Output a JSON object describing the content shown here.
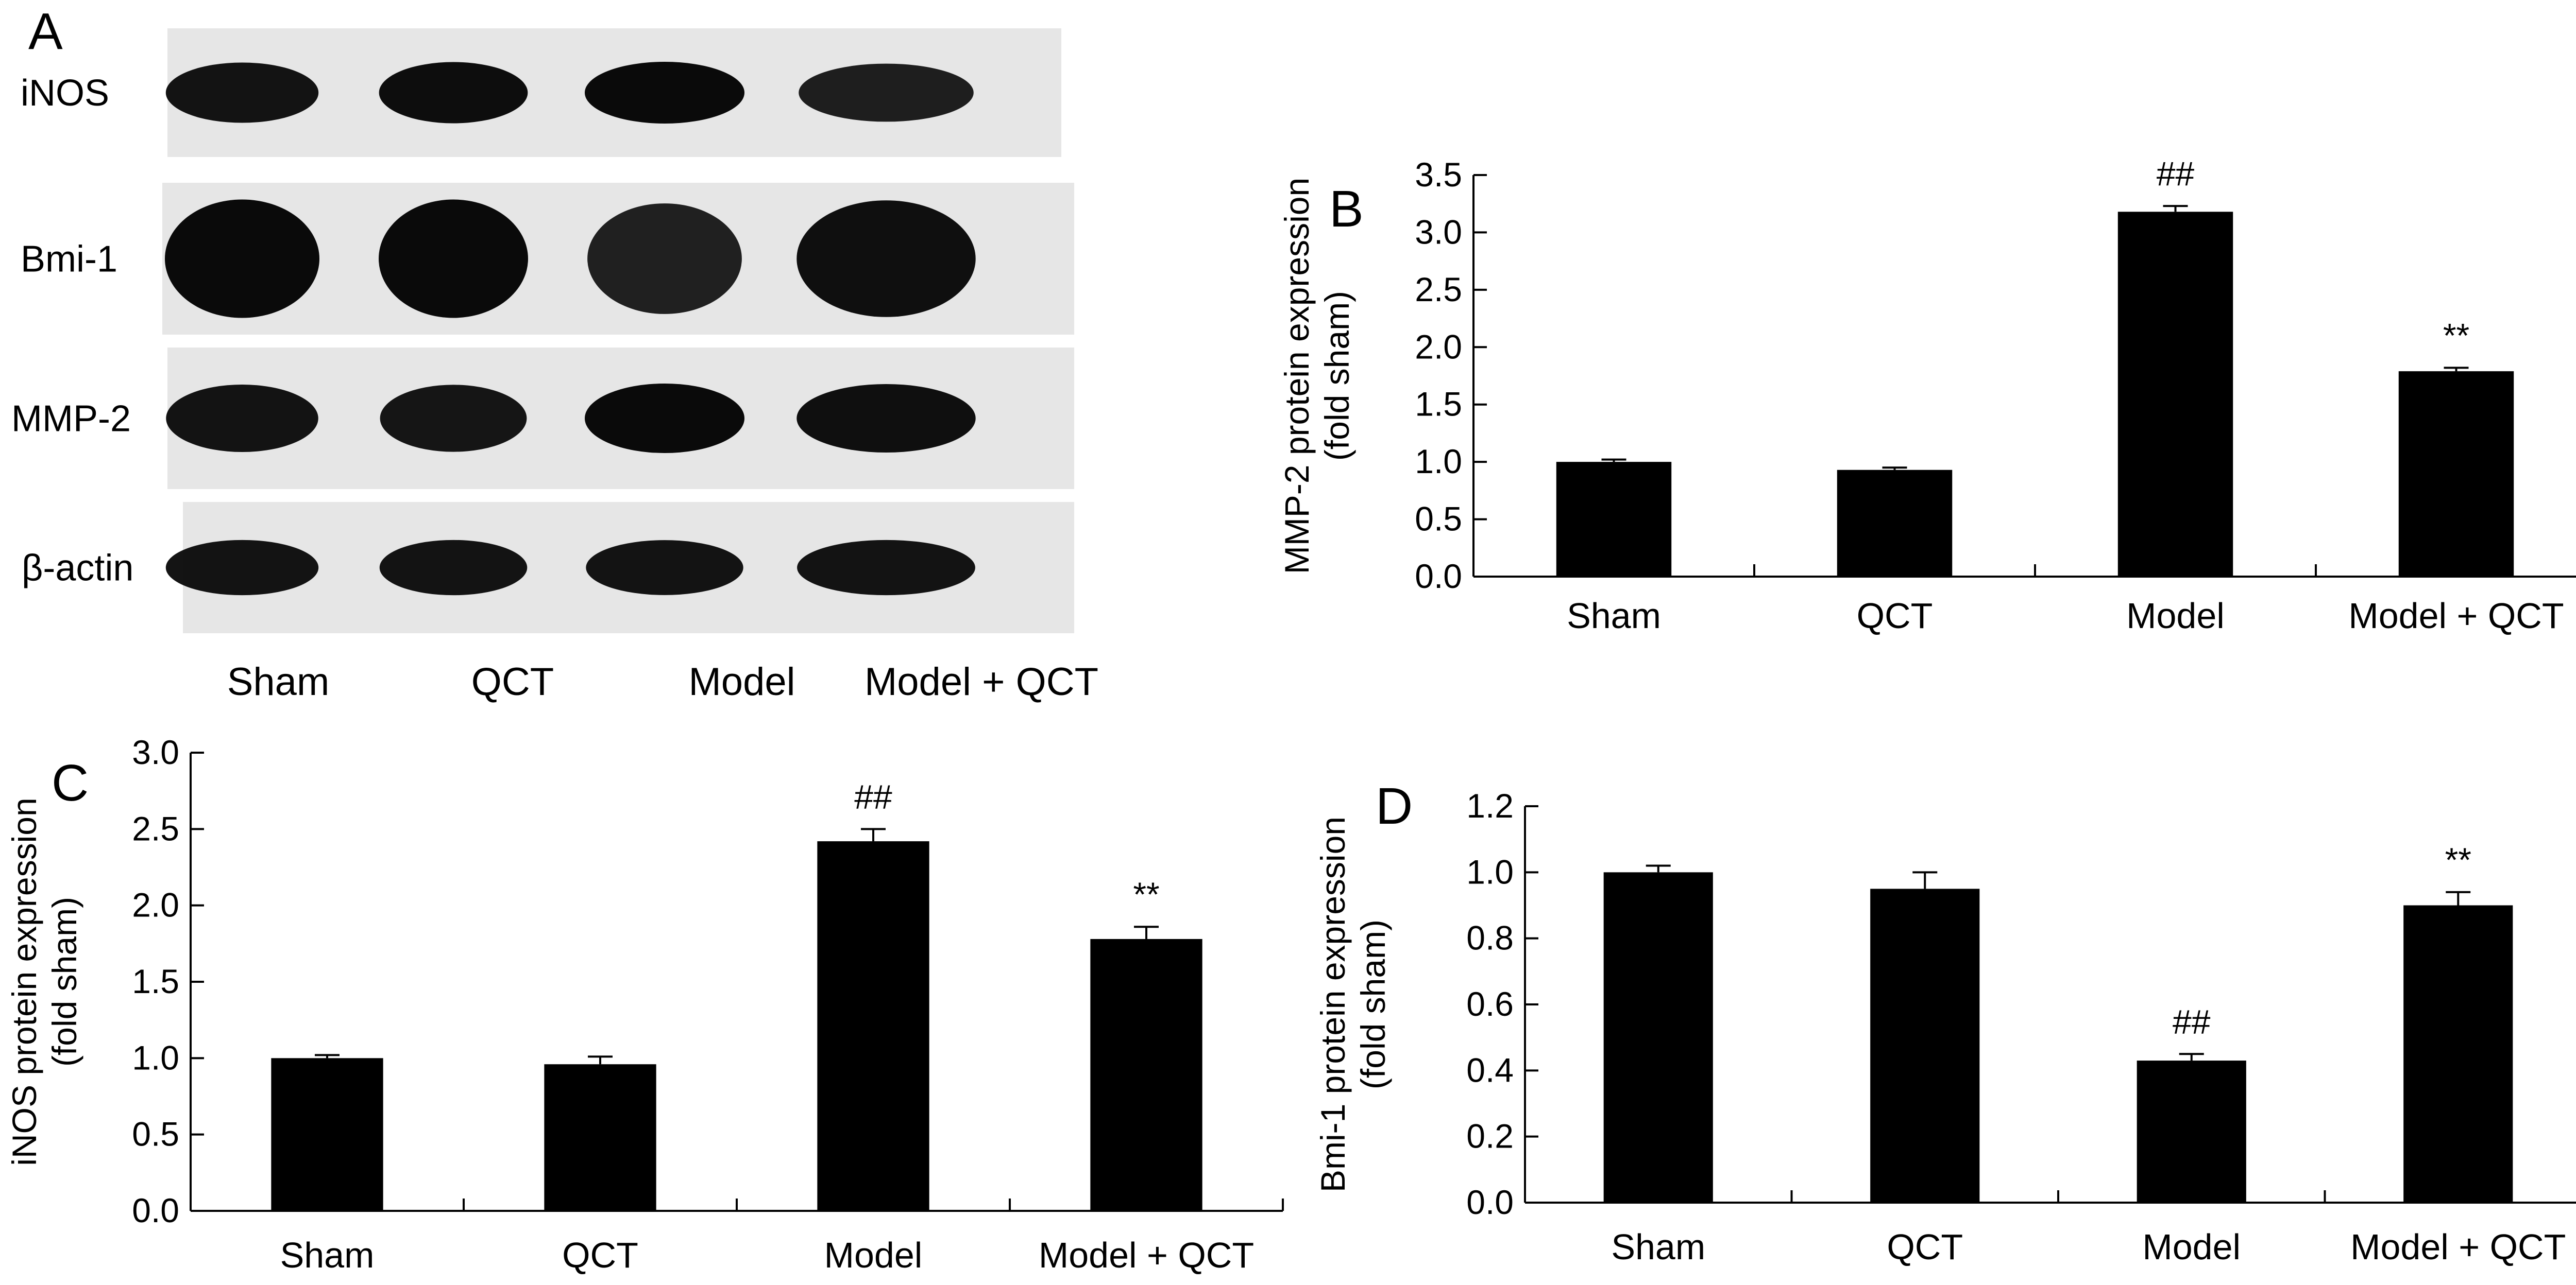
{
  "panels": {
    "a": {
      "letter": "A"
    },
    "b": {
      "letter": "B"
    },
    "c": {
      "letter": "C"
    },
    "d": {
      "letter": "D"
    }
  },
  "blots": {
    "rows": [
      {
        "label": "iNOS",
        "intensity": [
          0.92,
          0.97,
          1.0,
          0.8
        ]
      },
      {
        "label": "Bmi-1",
        "intensity": [
          1.0,
          1.0,
          0.78,
          0.95
        ]
      },
      {
        "label": "MMP-2",
        "intensity": [
          0.9,
          0.88,
          1.0,
          0.95
        ]
      },
      {
        "label": "β-actin",
        "intensity": [
          0.92,
          0.92,
          0.9,
          0.92
        ]
      }
    ],
    "lanes": [
      "Sham",
      "QCT",
      "Model",
      "Model + QCT"
    ]
  },
  "colors": {
    "bar": "#000000",
    "band": "#0a0a0a",
    "membrane": "#e6e6e6"
  },
  "chart_data": [
    {
      "type": "bar",
      "panel": "B",
      "categories": [
        "Sham",
        "QCT",
        "Model",
        "Model + QCT"
      ],
      "values": [
        1.0,
        0.93,
        3.18,
        1.79
      ],
      "errors": [
        0.02,
        0.02,
        0.05,
        0.03
      ],
      "annotations": [
        "",
        "",
        "##",
        "**"
      ],
      "ylabel": [
        "MMP-2 protein expression",
        "(fold sham)"
      ],
      "ylim": [
        0,
        3.5
      ],
      "yticks": [
        "0.0",
        "0.5",
        "1.0",
        "1.5",
        "2.0",
        "2.5",
        "3.0",
        "3.5"
      ],
      "grid": false
    },
    {
      "type": "bar",
      "panel": "C",
      "categories": [
        "Sham",
        "QCT",
        "Model",
        "Model + QCT"
      ],
      "values": [
        1.0,
        0.96,
        2.42,
        1.78
      ],
      "errors": [
        0.02,
        0.05,
        0.08,
        0.08
      ],
      "annotations": [
        "",
        "",
        "##",
        "**"
      ],
      "ylabel": [
        "iNOS protein expression",
        "(fold sham)"
      ],
      "ylim": [
        0,
        3.0
      ],
      "yticks": [
        "0.0",
        "0.5",
        "1.0",
        "1.5",
        "2.0",
        "2.5",
        "3.0"
      ],
      "grid": false
    },
    {
      "type": "bar",
      "panel": "D",
      "categories": [
        "Sham",
        "QCT",
        "Model",
        "Model + QCT"
      ],
      "values": [
        1.0,
        0.95,
        0.43,
        0.9
      ],
      "errors": [
        0.02,
        0.05,
        0.02,
        0.04
      ],
      "annotations": [
        "",
        "",
        "##",
        "**"
      ],
      "ylabel": [
        "Bmi-1 protein expression",
        "(fold sham)"
      ],
      "ylim": [
        0,
        1.2
      ],
      "yticks": [
        "0.0",
        "0.2",
        "0.4",
        "0.6",
        "0.8",
        "1.0",
        "1.2"
      ],
      "grid": false
    }
  ]
}
